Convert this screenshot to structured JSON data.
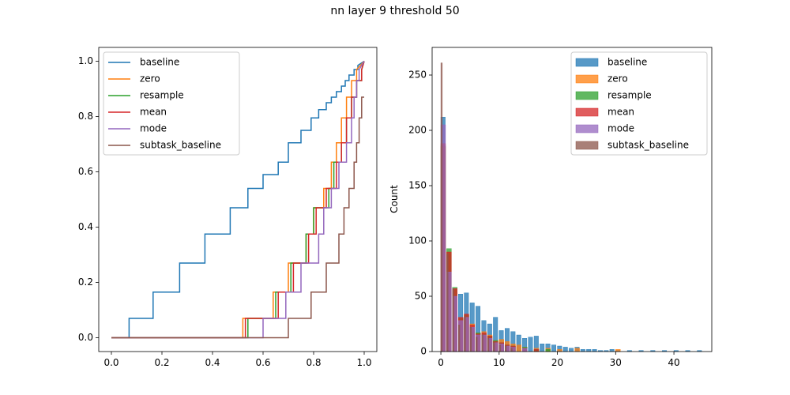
{
  "figure": {
    "title": "nn layer 9 threshold 50"
  },
  "chart_data": [
    {
      "type": "line",
      "line_shape": "step",
      "xlim": [
        -0.05,
        1.05
      ],
      "ylim": [
        -0.05,
        1.05
      ],
      "xticks": [
        0.0,
        0.2,
        0.4,
        0.6,
        0.8,
        1.0
      ],
      "xtick_labels": [
        "0.0",
        "0.2",
        "0.4",
        "0.6",
        "0.8",
        "1.0"
      ],
      "yticks": [
        0.0,
        0.2,
        0.4,
        0.6,
        0.8,
        1.0
      ],
      "ytick_labels": [
        "0.0",
        "0.2",
        "0.4",
        "0.6",
        "0.8",
        "1.0"
      ],
      "grid": false,
      "legend_position": "upper left",
      "series": [
        {
          "name": "baseline",
          "color": "#1f77b4",
          "x": [
            0.0,
            0.07,
            0.07,
            0.165,
            0.165,
            0.27,
            0.27,
            0.37,
            0.37,
            0.47,
            0.47,
            0.54,
            0.54,
            0.6,
            0.6,
            0.66,
            0.66,
            0.7,
            0.7,
            0.75,
            0.75,
            0.79,
            0.79,
            0.82,
            0.82,
            0.85,
            0.85,
            0.87,
            0.87,
            0.89,
            0.89,
            0.91,
            0.91,
            0.925,
            0.925,
            0.94,
            0.94,
            0.96,
            0.96,
            0.975,
            0.975,
            1.0
          ],
          "y": [
            0.0,
            0.0,
            0.07,
            0.07,
            0.165,
            0.165,
            0.27,
            0.27,
            0.375,
            0.375,
            0.47,
            0.47,
            0.54,
            0.54,
            0.59,
            0.59,
            0.635,
            0.635,
            0.705,
            0.705,
            0.75,
            0.75,
            0.795,
            0.795,
            0.825,
            0.825,
            0.85,
            0.85,
            0.87,
            0.87,
            0.89,
            0.89,
            0.91,
            0.91,
            0.93,
            0.93,
            0.95,
            0.95,
            0.97,
            0.97,
            0.985,
            1.0
          ]
        },
        {
          "name": "zero",
          "color": "#ff7f0e",
          "x": [
            0.0,
            0.52,
            0.52,
            0.64,
            0.64,
            0.7,
            0.7,
            0.77,
            0.77,
            0.8,
            0.8,
            0.84,
            0.84,
            0.87,
            0.87,
            0.89,
            0.89,
            0.91,
            0.91,
            0.93,
            0.93,
            0.95,
            0.95,
            0.97,
            0.97,
            1.0
          ],
          "y": [
            0.0,
            0.0,
            0.07,
            0.07,
            0.165,
            0.165,
            0.27,
            0.27,
            0.375,
            0.375,
            0.47,
            0.47,
            0.54,
            0.54,
            0.635,
            0.635,
            0.705,
            0.705,
            0.795,
            0.795,
            0.87,
            0.87,
            0.93,
            0.93,
            0.97,
            1.0
          ]
        },
        {
          "name": "resample",
          "color": "#2ca02c",
          "x": [
            0.0,
            0.54,
            0.54,
            0.65,
            0.65,
            0.71,
            0.71,
            0.77,
            0.77,
            0.8,
            0.8,
            0.86,
            0.86,
            0.88,
            0.88,
            0.91,
            0.91,
            0.93,
            0.93,
            0.95,
            0.95,
            0.97,
            0.97,
            0.99,
            0.99,
            1.0
          ],
          "y": [
            0.0,
            0.0,
            0.07,
            0.07,
            0.165,
            0.165,
            0.27,
            0.27,
            0.375,
            0.375,
            0.47,
            0.47,
            0.54,
            0.54,
            0.635,
            0.635,
            0.705,
            0.705,
            0.795,
            0.795,
            0.87,
            0.87,
            0.93,
            0.93,
            0.97,
            1.0
          ]
        },
        {
          "name": "mean",
          "color": "#d62728",
          "x": [
            0.0,
            0.53,
            0.53,
            0.66,
            0.66,
            0.72,
            0.72,
            0.78,
            0.78,
            0.81,
            0.81,
            0.85,
            0.85,
            0.89,
            0.89,
            0.91,
            0.91,
            0.93,
            0.93,
            0.95,
            0.95,
            0.97,
            0.97,
            0.99,
            0.99,
            1.0
          ],
          "y": [
            0.0,
            0.0,
            0.07,
            0.07,
            0.165,
            0.165,
            0.27,
            0.27,
            0.375,
            0.375,
            0.47,
            0.47,
            0.54,
            0.54,
            0.635,
            0.635,
            0.705,
            0.705,
            0.795,
            0.795,
            0.87,
            0.87,
            0.93,
            0.93,
            0.97,
            1.0
          ]
        },
        {
          "name": "mode",
          "color": "#9467bd",
          "x": [
            0.0,
            0.6,
            0.6,
            0.69,
            0.69,
            0.75,
            0.75,
            0.82,
            0.82,
            0.84,
            0.84,
            0.87,
            0.87,
            0.9,
            0.9,
            0.93,
            0.93,
            0.95,
            0.95,
            0.96,
            0.96,
            0.97,
            0.97,
            0.98,
            0.98,
            1.0
          ],
          "y": [
            0.0,
            0.0,
            0.07,
            0.07,
            0.165,
            0.165,
            0.27,
            0.27,
            0.375,
            0.375,
            0.47,
            0.47,
            0.54,
            0.54,
            0.635,
            0.635,
            0.705,
            0.705,
            0.795,
            0.795,
            0.87,
            0.87,
            0.93,
            0.93,
            0.97,
            1.0
          ]
        },
        {
          "name": "subtask_baseline",
          "color": "#8c564b",
          "x": [
            0.0,
            0.7,
            0.7,
            0.79,
            0.79,
            0.85,
            0.85,
            0.9,
            0.9,
            0.92,
            0.92,
            0.94,
            0.94,
            0.96,
            0.96,
            0.97,
            0.97,
            0.98,
            0.98,
            0.99,
            0.99,
            1.0
          ],
          "y": [
            0.0,
            0.0,
            0.07,
            0.07,
            0.165,
            0.165,
            0.27,
            0.27,
            0.375,
            0.375,
            0.47,
            0.47,
            0.54,
            0.54,
            0.635,
            0.635,
            0.705,
            0.705,
            0.795,
            0.795,
            0.87,
            0.87
          ]
        }
      ]
    },
    {
      "type": "bar",
      "subtype": "histogram",
      "ylabel": "Count",
      "xlim": [
        -1.5,
        46.5
      ],
      "ylim": [
        0,
        275
      ],
      "xticks": [
        0,
        10,
        20,
        30,
        40
      ],
      "xtick_labels": [
        "0",
        "10",
        "20",
        "30",
        "40"
      ],
      "yticks": [
        0,
        50,
        100,
        150,
        200,
        250
      ],
      "ytick_labels": [
        "0",
        "50",
        "100",
        "150",
        "200",
        "250"
      ],
      "grid": false,
      "legend_position": "upper right",
      "bar_opacity": 0.75,
      "series": [
        {
          "name": "baseline",
          "color": "#1f77b4",
          "bin_width": 0.75,
          "x": [
            0,
            1,
            2,
            3,
            4,
            5,
            6,
            7,
            8,
            9,
            10,
            11,
            12,
            13,
            14,
            15,
            16,
            17,
            18,
            19,
            20,
            21,
            22,
            23,
            24,
            25,
            26,
            27,
            28,
            29,
            30,
            32,
            34,
            36,
            38,
            40,
            42,
            44
          ],
          "values": [
            212,
            88,
            50,
            52,
            53,
            44,
            41,
            28,
            25,
            31,
            19,
            21,
            18,
            15,
            12,
            13,
            14,
            7,
            7,
            6,
            5,
            4,
            3,
            4,
            2,
            2,
            2,
            1,
            1,
            2,
            1,
            1,
            1,
            1,
            1,
            1,
            1,
            1
          ]
        },
        {
          "name": "zero",
          "color": "#ff7f0e",
          "bin_width": 0.8,
          "x": [
            0,
            1,
            2,
            3,
            4,
            5,
            6,
            7,
            8,
            9,
            10,
            11,
            12,
            13,
            14,
            16,
            18,
            20,
            23,
            30
          ],
          "values": [
            185,
            90,
            56,
            30,
            33,
            25,
            17,
            18,
            15,
            10,
            11,
            9,
            7,
            6,
            4,
            3,
            3,
            2,
            3,
            2
          ]
        },
        {
          "name": "resample",
          "color": "#2ca02c",
          "bin_width": 0.8,
          "x": [
            0,
            1,
            2,
            3,
            4,
            5,
            6,
            7,
            8,
            9,
            10,
            11,
            12,
            14,
            16,
            18
          ],
          "values": [
            186,
            93,
            58,
            30,
            33,
            22,
            17,
            16,
            14,
            10,
            8,
            6,
            5,
            4,
            2,
            2
          ]
        },
        {
          "name": "mean",
          "color": "#d62728",
          "bin_width": 0.8,
          "x": [
            0,
            1,
            2,
            3,
            4,
            5,
            6,
            7,
            8,
            9,
            10,
            11,
            12,
            14,
            16
          ],
          "values": [
            188,
            90,
            57,
            31,
            34,
            24,
            16,
            17,
            14,
            9,
            8,
            6,
            5,
            3,
            2
          ]
        },
        {
          "name": "mode",
          "color": "#9467bd",
          "bin_width": 0.8,
          "x": [
            0,
            1,
            2,
            3,
            4,
            5,
            6,
            7,
            8,
            9,
            10,
            11,
            12,
            14
          ],
          "values": [
            205,
            72,
            50,
            28,
            31,
            22,
            15,
            15,
            12,
            8,
            7,
            5,
            4,
            3
          ]
        },
        {
          "name": "subtask_baseline",
          "color": "#8c564b",
          "bin_width": 0.25,
          "x": [
            0,
            1,
            2,
            3,
            4,
            5,
            6,
            7,
            8,
            9,
            10,
            11,
            12
          ],
          "values": [
            261,
            88,
            57,
            24,
            32,
            22,
            13,
            15,
            12,
            8,
            6,
            5,
            3
          ]
        }
      ]
    }
  ]
}
